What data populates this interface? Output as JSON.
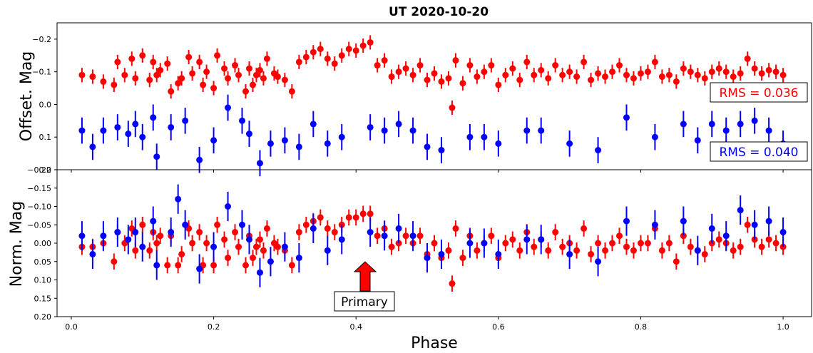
{
  "chart_data": [
    {
      "type": "scatter",
      "title": "UT 2020-10-20",
      "xlabel": "",
      "ylabel": "Offset. Mag",
      "xlim": [
        -0.02,
        1.04
      ],
      "ylim": [
        0.2,
        -0.25
      ],
      "y_inverted": true,
      "yticks": [
        -0.2,
        -0.1,
        0.0,
        0.1,
        0.2
      ],
      "ytick_labels": [
        "−0.2",
        "−0.1",
        "0.0",
        "0.1",
        "0.2"
      ],
      "xticks": [
        0.0,
        0.2,
        0.4,
        0.6,
        0.8,
        1.0
      ],
      "annotations": [
        {
          "text": "RMS = 0.036",
          "color": "#ff0000"
        },
        {
          "text": "RMS = 0.040",
          "color": "#0000ff"
        }
      ],
      "series": [
        {
          "color": "#ff0000",
          "x": [
            0.015,
            0.03,
            0.045,
            0.06,
            0.065,
            0.075,
            0.085,
            0.09,
            0.1,
            0.11,
            0.115,
            0.12,
            0.125,
            0.135,
            0.14,
            0.15,
            0.155,
            0.165,
            0.17,
            0.18,
            0.185,
            0.19,
            0.2,
            0.205,
            0.215,
            0.22,
            0.23,
            0.235,
            0.245,
            0.25,
            0.255,
            0.26,
            0.265,
            0.27,
            0.275,
            0.285,
            0.29,
            0.3,
            0.31,
            0.32,
            0.33,
            0.34,
            0.35,
            0.36,
            0.37,
            0.38,
            0.39,
            0.4,
            0.41,
            0.42,
            0.43,
            0.44,
            0.45,
            0.46,
            0.47,
            0.48,
            0.49,
            0.5,
            0.51,
            0.52,
            0.53,
            0.535,
            0.54,
            0.55,
            0.56,
            0.57,
            0.58,
            0.59,
            0.6,
            0.61,
            0.62,
            0.63,
            0.64,
            0.65,
            0.66,
            0.67,
            0.68,
            0.69,
            0.7,
            0.71,
            0.72,
            0.73,
            0.74,
            0.75,
            0.76,
            0.77,
            0.78,
            0.79,
            0.8,
            0.81,
            0.82,
            0.83,
            0.84,
            0.85,
            0.86,
            0.87,
            0.88,
            0.89,
            0.9,
            0.91,
            0.92,
            0.93,
            0.94,
            0.95,
            0.96,
            0.97,
            0.98,
            0.99,
            1.0
          ],
          "y": [
            -0.09,
            -0.085,
            -0.07,
            -0.06,
            -0.13,
            -0.09,
            -0.14,
            -0.08,
            -0.15,
            -0.075,
            -0.13,
            -0.09,
            -0.105,
            -0.125,
            -0.04,
            -0.065,
            -0.08,
            -0.145,
            -0.095,
            -0.13,
            -0.06,
            -0.1,
            -0.05,
            -0.15,
            -0.11,
            -0.08,
            -0.12,
            -0.09,
            -0.04,
            -0.11,
            -0.06,
            -0.09,
            -0.105,
            -0.08,
            -0.14,
            -0.095,
            -0.085,
            -0.075,
            -0.04,
            -0.13,
            -0.145,
            -0.16,
            -0.17,
            -0.14,
            -0.125,
            -0.15,
            -0.17,
            -0.165,
            -0.18,
            -0.19,
            -0.12,
            -0.135,
            -0.085,
            -0.1,
            -0.11,
            -0.09,
            -0.12,
            -0.075,
            -0.095,
            -0.07,
            -0.08,
            0.01,
            -0.135,
            -0.065,
            -0.12,
            -0.085,
            -0.1,
            -0.12,
            -0.06,
            -0.09,
            -0.11,
            -0.075,
            -0.13,
            -0.09,
            -0.105,
            -0.08,
            -0.12,
            -0.09,
            -0.1,
            -0.085,
            -0.13,
            -0.075,
            -0.095,
            -0.085,
            -0.1,
            -0.12,
            -0.09,
            -0.08,
            -0.095,
            -0.1,
            -0.13,
            -0.085,
            -0.09,
            -0.07,
            -0.11,
            -0.1,
            -0.09,
            -0.08,
            -0.1,
            -0.11,
            -0.1,
            -0.085,
            -0.095,
            -0.14,
            -0.11,
            -0.095,
            -0.105,
            -0.1,
            -0.09
          ],
          "yerr": 0.022
        },
        {
          "color": "#0000ff",
          "x": [
            0.015,
            0.03,
            0.045,
            0.065,
            0.08,
            0.09,
            0.1,
            0.115,
            0.12,
            0.14,
            0.16,
            0.18,
            0.2,
            0.22,
            0.24,
            0.25,
            0.265,
            0.28,
            0.3,
            0.32,
            0.34,
            0.36,
            0.38,
            0.42,
            0.44,
            0.46,
            0.48,
            0.5,
            0.52,
            0.56,
            0.58,
            0.6,
            0.64,
            0.66,
            0.7,
            0.74,
            0.78,
            0.82,
            0.86,
            0.88,
            0.9,
            0.92,
            0.94,
            0.96,
            0.98,
            1.0
          ],
          "y": [
            0.08,
            0.13,
            0.08,
            0.07,
            0.09,
            0.06,
            0.1,
            0.04,
            0.16,
            0.07,
            0.05,
            0.17,
            0.11,
            0.01,
            0.05,
            0.09,
            0.18,
            0.12,
            0.11,
            0.13,
            0.06,
            0.12,
            0.1,
            0.07,
            0.08,
            0.06,
            0.08,
            0.13,
            0.14,
            0.1,
            0.1,
            0.12,
            0.08,
            0.08,
            0.12,
            0.14,
            0.04,
            0.1,
            0.06,
            0.11,
            0.06,
            0.08,
            0.06,
            0.05,
            0.08,
            0.12
          ],
          "yerr": 0.04
        }
      ]
    },
    {
      "type": "scatter",
      "title": "",
      "xlabel": "Phase",
      "ylabel": "Norm. Mag",
      "xlim": [
        -0.02,
        1.04
      ],
      "ylim": [
        0.2,
        -0.2
      ],
      "y_inverted": true,
      "yticks": [
        -0.15,
        -0.1,
        -0.05,
        0.0,
        0.05,
        0.1,
        0.15,
        0.2
      ],
      "ytick_labels": [
        "−0.15",
        "−0.10",
        "−0.05",
        "0.00",
        "0.05",
        "0.10",
        "0.15",
        "0.20"
      ],
      "xticks": [
        0.0,
        0.2,
        0.4,
        0.6,
        0.8,
        1.0
      ],
      "xtick_labels": [
        "0.0",
        "0.2",
        "0.4",
        "0.6",
        "0.8",
        "1.0"
      ],
      "annotations": [
        {
          "text": "Primary",
          "x": 0.4,
          "y": 0.05
        }
      ],
      "series": [
        {
          "color": "#ff0000",
          "x": [
            0.015,
            0.03,
            0.045,
            0.06,
            0.065,
            0.075,
            0.085,
            0.09,
            0.1,
            0.11,
            0.115,
            0.12,
            0.125,
            0.135,
            0.14,
            0.15,
            0.155,
            0.165,
            0.17,
            0.18,
            0.185,
            0.19,
            0.2,
            0.205,
            0.215,
            0.22,
            0.23,
            0.235,
            0.245,
            0.25,
            0.255,
            0.26,
            0.265,
            0.27,
            0.275,
            0.285,
            0.29,
            0.3,
            0.31,
            0.32,
            0.33,
            0.34,
            0.35,
            0.36,
            0.37,
            0.38,
            0.39,
            0.4,
            0.41,
            0.42,
            0.43,
            0.44,
            0.45,
            0.46,
            0.47,
            0.48,
            0.49,
            0.5,
            0.51,
            0.52,
            0.53,
            0.535,
            0.54,
            0.55,
            0.56,
            0.57,
            0.58,
            0.59,
            0.6,
            0.61,
            0.62,
            0.63,
            0.64,
            0.65,
            0.66,
            0.67,
            0.68,
            0.69,
            0.7,
            0.71,
            0.72,
            0.73,
            0.74,
            0.75,
            0.76,
            0.77,
            0.78,
            0.79,
            0.8,
            0.81,
            0.82,
            0.83,
            0.84,
            0.85,
            0.86,
            0.87,
            0.88,
            0.89,
            0.9,
            0.91,
            0.92,
            0.93,
            0.94,
            0.95,
            0.96,
            0.97,
            0.98,
            0.99,
            1.0
          ],
          "y": [
            0.01,
            0.01,
            0.0,
            0.05,
            -0.03,
            0.0,
            -0.04,
            0.02,
            -0.05,
            0.02,
            -0.03,
            0.0,
            -0.02,
            0.06,
            -0.02,
            0.06,
            0.03,
            -0.04,
            0.0,
            -0.03,
            0.06,
            0.0,
            0.06,
            -0.05,
            -0.01,
            0.04,
            -0.03,
            0.01,
            0.06,
            -0.02,
            0.04,
            0.01,
            -0.01,
            0.02,
            -0.04,
            0.0,
            0.01,
            0.02,
            0.06,
            -0.03,
            -0.05,
            -0.06,
            -0.07,
            -0.04,
            -0.03,
            -0.05,
            -0.07,
            -0.07,
            -0.08,
            -0.08,
            -0.02,
            -0.04,
            0.01,
            0.0,
            -0.02,
            0.0,
            -0.02,
            0.03,
            0.0,
            0.04,
            0.02,
            0.11,
            -0.04,
            0.04,
            -0.02,
            0.02,
            0.0,
            -0.02,
            0.04,
            0.0,
            -0.01,
            0.02,
            -0.03,
            0.01,
            -0.01,
            0.02,
            -0.03,
            0.01,
            0.0,
            0.02,
            -0.04,
            0.03,
            0.0,
            0.02,
            0.0,
            -0.02,
            0.01,
            0.02,
            0.0,
            0.0,
            -0.04,
            0.02,
            0.0,
            0.05,
            -0.02,
            0.01,
            0.02,
            0.03,
            0.0,
            -0.01,
            0.0,
            0.02,
            0.01,
            -0.05,
            -0.01,
            0.01,
            -0.01,
            0.0,
            0.01
          ],
          "yerr": 0.022
        },
        {
          "color": "#0000ff",
          "x": [
            0.015,
            0.03,
            0.045,
            0.065,
            0.08,
            0.09,
            0.1,
            0.115,
            0.12,
            0.14,
            0.15,
            0.16,
            0.18,
            0.2,
            0.22,
            0.24,
            0.25,
            0.265,
            0.28,
            0.3,
            0.32,
            0.34,
            0.36,
            0.38,
            0.42,
            0.44,
            0.46,
            0.48,
            0.5,
            0.52,
            0.56,
            0.58,
            0.6,
            0.64,
            0.66,
            0.7,
            0.74,
            0.78,
            0.82,
            0.86,
            0.88,
            0.9,
            0.92,
            0.94,
            0.96,
            0.98,
            1.0
          ],
          "y": [
            -0.02,
            0.03,
            -0.02,
            -0.03,
            -0.01,
            -0.03,
            0.01,
            -0.06,
            0.06,
            -0.03,
            -0.12,
            -0.05,
            0.07,
            0.01,
            -0.1,
            -0.05,
            -0.01,
            0.08,
            0.05,
            0.01,
            0.04,
            -0.04,
            0.02,
            -0.01,
            -0.03,
            -0.02,
            -0.04,
            -0.02,
            0.04,
            0.03,
            0.0,
            0.0,
            0.03,
            -0.01,
            -0.01,
            0.03,
            0.05,
            -0.06,
            -0.05,
            -0.06,
            0.02,
            -0.04,
            -0.02,
            -0.09,
            -0.05,
            -0.06,
            -0.03
          ],
          "yerr": 0.04
        }
      ]
    }
  ]
}
